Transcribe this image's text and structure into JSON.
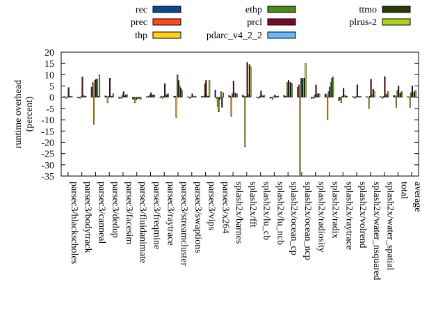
{
  "chart_data": {
    "type": "bar",
    "ylabel": "runtime overhead\n(percent)",
    "ylim": [
      -35,
      20
    ],
    "yticks": [
      20,
      15,
      10,
      5,
      0,
      -5,
      -10,
      -15,
      -20,
      -25,
      -30,
      -35
    ],
    "legend_position": "top",
    "categories": [
      "parsec3/blackscholes",
      "parsec3/bodytrack",
      "parsec3/canneal",
      "parsec3/dedup",
      "parsec3/facesim",
      "parsec3/fluidanimate",
      "parsec3/freqmine",
      "parsec3/raytrace",
      "parsec3/streamcluster",
      "parsec3/swaptions",
      "parsec3/vips",
      "parsec3/x264",
      "splash2x/barnes",
      "splash2x/fft",
      "splash2x/lu_cb",
      "splash2x/lu_ncb",
      "splash2x/ocean_cp",
      "splash2x/ocean_ncp",
      "splash2x/radiosity",
      "splash2x/radix",
      "splash2x/raytrace",
      "splash2x/volrend",
      "splash2x/water_nsquared",
      "splash2x/water_spatial",
      "total",
      "average"
    ],
    "series": [
      {
        "name": "rec",
        "color": "#0b4a8a",
        "values": [
          0.3,
          -0.3,
          4.5,
          0.6,
          -0.5,
          -0.8,
          0.3,
          -0.3,
          0.5,
          0.2,
          0.4,
          3.2,
          0.8,
          1.0,
          -0.2,
          -0.5,
          0.8,
          4.5,
          -0.5,
          1.5,
          -1.5,
          0.3,
          0.3,
          0.3,
          0.8,
          0.3
        ]
      },
      {
        "name": "prec",
        "color": "#ff4a1a",
        "values": [
          0.2,
          -0.2,
          6.5,
          0.4,
          -0.3,
          -1.0,
          0.2,
          0.5,
          0.4,
          0.1,
          0.3,
          -0.5,
          0.5,
          0.5,
          -0.1,
          -0.3,
          0.5,
          5.5,
          -0.3,
          1.2,
          -1.0,
          0.2,
          0.2,
          0.2,
          0.6,
          0.2
        ]
      },
      {
        "name": "thp",
        "color": "#ffd21a",
        "values": [
          -0.5,
          -0.5,
          -12.0,
          -2.5,
          -0.5,
          -2.5,
          0.5,
          -0.5,
          -9.0,
          -0.5,
          0.5,
          -4.0,
          -8.5,
          -22.0,
          -0.5,
          -1.0,
          0.5,
          -34.5,
          -0.5,
          -10.0,
          -2.5,
          -0.5,
          -5.0,
          -0.5,
          -4.5,
          -4.5
        ]
      },
      {
        "name": "ethp",
        "color": "#4a8a1a",
        "values": [
          0.2,
          0.3,
          7.5,
          0.5,
          1.0,
          -1.2,
          1.0,
          0.4,
          10.0,
          0.2,
          6.0,
          -6.5,
          1.5,
          0.4,
          0.5,
          0.2,
          6.5,
          8.5,
          1.0,
          2.5,
          0.5,
          0.3,
          0.5,
          0.4,
          3.0,
          2.0
        ]
      },
      {
        "name": "prcl",
        "color": "#7a0a28",
        "values": [
          4.3,
          9.0,
          8.0,
          8.5,
          2.5,
          -0.5,
          2.0,
          6.0,
          7.5,
          1.5,
          7.5,
          -1.0,
          7.2,
          15.5,
          2.8,
          1.0,
          7.5,
          8.0,
          5.5,
          4.5,
          4.0,
          5.5,
          8.0,
          9.2,
          5.0,
          5.0
        ]
      },
      {
        "name": "pdarc_v4_2_2",
        "color": "#6ab8f8",
        "values": [
          0.5,
          0.8,
          8.0,
          0.3,
          0.5,
          -0.7,
          1.0,
          1.0,
          5.0,
          0.3,
          0.5,
          2.5,
          2.0,
          1.2,
          0.8,
          0.5,
          6.5,
          8.5,
          1.5,
          6.5,
          1.0,
          0.3,
          1.0,
          1.0,
          1.5,
          2.0
        ]
      },
      {
        "name": "ttmo",
        "color": "#2a3a0a",
        "values": [
          0.3,
          0.4,
          0.5,
          0.5,
          1.0,
          -0.5,
          1.0,
          1.2,
          4.0,
          0.3,
          0.5,
          -4.5,
          1.5,
          14.5,
          0.5,
          0.3,
          6.5,
          8.5,
          1.5,
          8.5,
          0.5,
          0.3,
          3.5,
          1.5,
          2.0,
          2.5
        ]
      },
      {
        "name": "plrus-2",
        "color": "#aad21a",
        "values": [
          0.3,
          0.5,
          10.0,
          1.5,
          1.2,
          -1.0,
          1.0,
          1.5,
          3.0,
          0.4,
          7.5,
          2.0,
          1.5,
          13.5,
          0.8,
          0.5,
          6.0,
          15.0,
          1.5,
          9.0,
          0.5,
          0.4,
          2.5,
          2.5,
          2.5,
          3.0
        ]
      }
    ]
  }
}
